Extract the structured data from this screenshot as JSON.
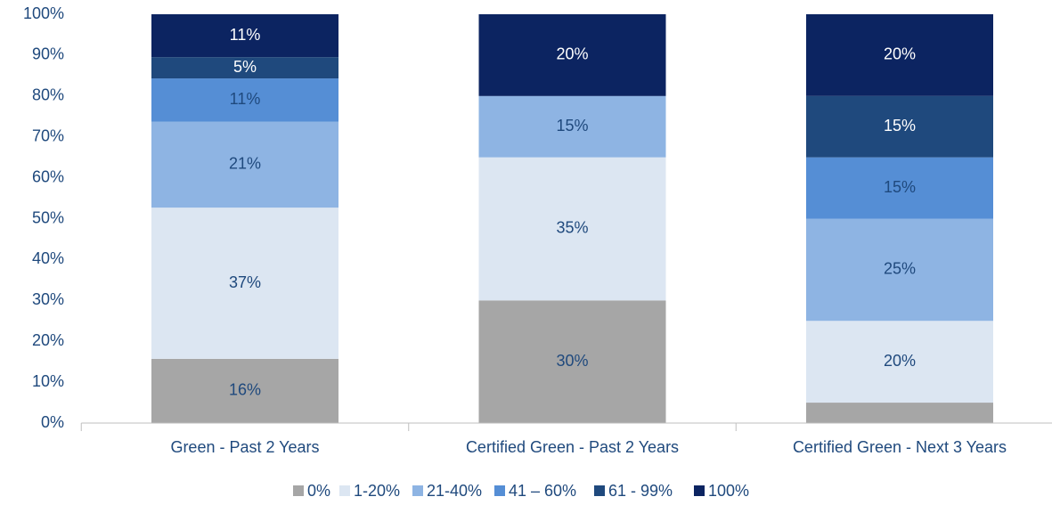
{
  "chart_data": {
    "type": "stacked_bar",
    "categories": [
      "Green - Past 2 Years",
      "Certified Green - Past 2 Years",
      "Certified Green - Next 3 Years"
    ],
    "series": [
      {
        "name": "0%",
        "color": "#a6a6a6",
        "label_color": "#1f497d",
        "values": [
          15.7,
          30,
          5
        ],
        "value_labels": [
          "16%",
          "30%",
          null
        ]
      },
      {
        "name": "1-20%",
        "color": "#dce6f2",
        "label_color": "#1f497d",
        "values": [
          37.0,
          35,
          20
        ],
        "value_labels": [
          "37%",
          "35%",
          "20%"
        ]
      },
      {
        "name": "21-40%",
        "color": "#8eb4e3",
        "label_color": "#1f497d",
        "values": [
          21.0,
          15,
          25
        ],
        "value_labels": [
          "21%",
          "15%",
          "25%"
        ]
      },
      {
        "name": "41 – 60%",
        "color": "#558ed5",
        "label_color": "#1f497d",
        "values": [
          10.6,
          0,
          15
        ],
        "value_labels": [
          "11%",
          null,
          "15%"
        ]
      },
      {
        "name": "61 - 99%",
        "color": "#1f497d",
        "label_color": "#ffffff",
        "values": [
          5.2,
          0,
          15
        ],
        "value_labels": [
          "5%",
          null,
          "15%"
        ]
      },
      {
        "name": "100%",
        "color": "#0c2461",
        "label_color": "#ffffff",
        "values": [
          10.5,
          20,
          20
        ],
        "value_labels": [
          "11%",
          "20%",
          "20%"
        ]
      }
    ],
    "ylim": [
      0,
      100
    ],
    "yticks": [
      {
        "value": 0,
        "label": "0%"
      },
      {
        "value": 10,
        "label": "10%"
      },
      {
        "value": 20,
        "label": "20%"
      },
      {
        "value": 30,
        "label": "30%"
      },
      {
        "value": 40,
        "label": "40%"
      },
      {
        "value": 50,
        "label": "50%"
      },
      {
        "value": 60,
        "label": "60%"
      },
      {
        "value": 70,
        "label": "70%"
      },
      {
        "value": 80,
        "label": "80%"
      },
      {
        "value": 90,
        "label": "90%"
      },
      {
        "value": 100,
        "label": "100%"
      }
    ],
    "legend": "bottom",
    "grid": false
  }
}
